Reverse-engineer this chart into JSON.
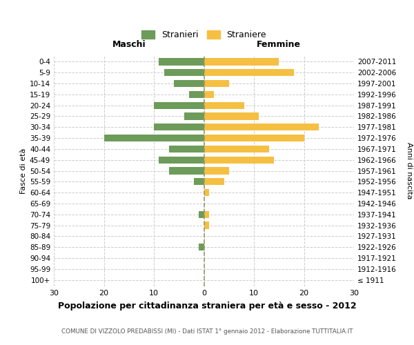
{
  "age_groups": [
    "100+",
    "95-99",
    "90-94",
    "85-89",
    "80-84",
    "75-79",
    "70-74",
    "65-69",
    "60-64",
    "55-59",
    "50-54",
    "45-49",
    "40-44",
    "35-39",
    "30-34",
    "25-29",
    "20-24",
    "15-19",
    "10-14",
    "5-9",
    "0-4"
  ],
  "birth_years": [
    "≤ 1911",
    "1912-1916",
    "1917-1921",
    "1922-1926",
    "1927-1931",
    "1932-1936",
    "1937-1941",
    "1942-1946",
    "1947-1951",
    "1952-1956",
    "1957-1961",
    "1962-1966",
    "1967-1971",
    "1972-1976",
    "1977-1981",
    "1982-1986",
    "1987-1991",
    "1992-1996",
    "1997-2001",
    "2002-2006",
    "2007-2011"
  ],
  "maschi": [
    0,
    0,
    0,
    1,
    0,
    0,
    1,
    0,
    0,
    2,
    7,
    9,
    7,
    20,
    10,
    4,
    10,
    3,
    6,
    8,
    9
  ],
  "femmine": [
    0,
    0,
    0,
    0,
    0,
    1,
    1,
    0,
    1,
    4,
    5,
    14,
    13,
    20,
    23,
    11,
    8,
    2,
    5,
    18,
    15
  ],
  "male_color": "#6d9b5a",
  "female_color": "#f5bf42",
  "title": "Popolazione per cittadinanza straniera per età e sesso - 2012",
  "subtitle": "COMUNE DI VIZZOLO PREDABISSI (MI) - Dati ISTAT 1° gennaio 2012 - Elaborazione TUTTITALIA.IT",
  "header_left": "Maschi",
  "header_right": "Femmine",
  "ylabel_left": "Fasce di età",
  "ylabel_right": "Anni di nascita",
  "legend_male": "Stranieri",
  "legend_female": "Straniere",
  "xlim": 30,
  "bg_color": "#ffffff",
  "grid_color": "#cccccc",
  "vline_color": "#999966"
}
